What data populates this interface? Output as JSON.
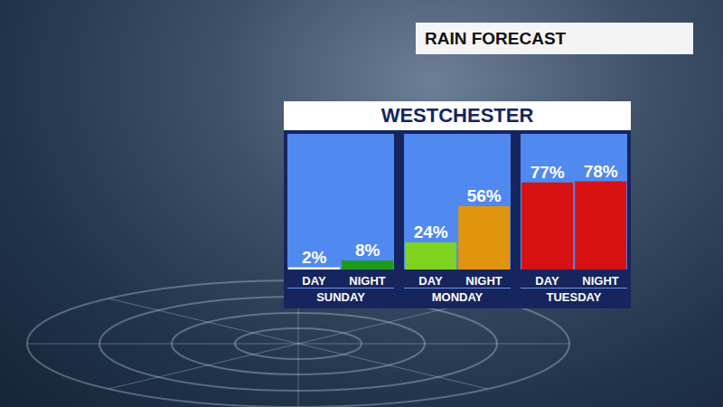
{
  "chart_data": {
    "type": "bar",
    "title": "RAIN FORECAST",
    "subtitle": "WESTCHESTER",
    "categories": [
      "DAY",
      "NIGHT",
      "DAY",
      "NIGHT",
      "DAY",
      "NIGHT"
    ],
    "groups": [
      "SUNDAY",
      "MONDAY",
      "TUESDAY"
    ],
    "values": [
      2,
      8,
      24,
      56,
      77,
      78
    ],
    "value_labels": [
      "2%",
      "8%",
      "24%",
      "56%",
      "77%",
      "78%"
    ],
    "colors": [
      "#ffffff",
      "#1d9a1d",
      "#7ed321",
      "#e0950f",
      "#d81212",
      "#d81212"
    ],
    "ylim": [
      0,
      120
    ],
    "tick_labels": "x",
    "data_labels": true
  }
}
